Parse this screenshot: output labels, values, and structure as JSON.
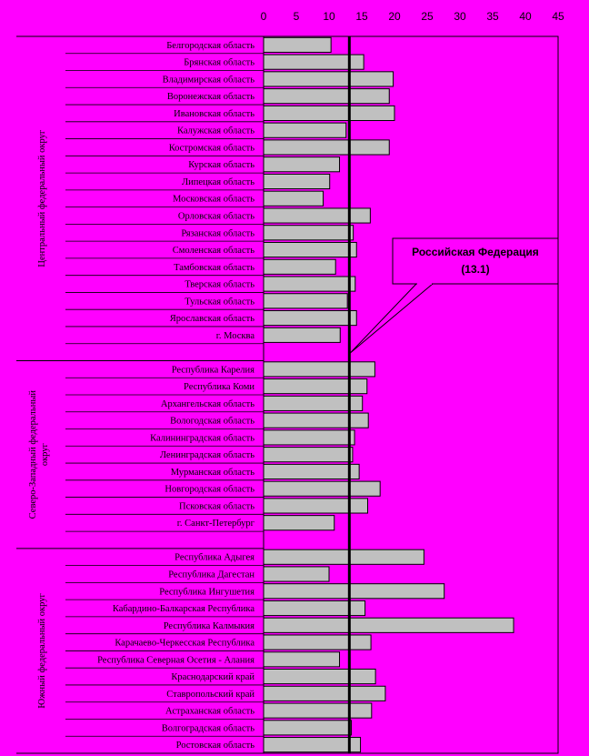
{
  "chart_data": {
    "type": "bar",
    "orientation": "horizontal",
    "xlim": [
      0,
      45
    ],
    "xticks": [
      "0",
      "5",
      "10",
      "15",
      "20",
      "25",
      "30",
      "35",
      "40",
      "45"
    ],
    "grid": false,
    "bar_color": "#c0c0c0",
    "background_color": "#ff00ff",
    "reference_line": {
      "value": 13.1,
      "label_line1": "Российская Федерация",
      "label_line2": "(13.1)"
    },
    "groups": [
      {
        "name": "Центральный федеральный округ",
        "categories": [
          "Белгородская область",
          "Брянская область",
          "Владимирская область",
          "Воронежская область",
          "Ивановская область",
          "Калужская область",
          "Костромская область",
          "Курская область",
          "Липецкая область",
          "Московская область",
          "Орловская область",
          "Рязанская область",
          "Смоленская область",
          "Тамбовская область",
          "Тверская область",
          "Тульская область",
          "Ярославская область",
          "г. Москва",
          ""
        ],
        "values": [
          10.3,
          15.3,
          19.8,
          19.2,
          20.0,
          12.6,
          19.2,
          11.6,
          10.1,
          9.1,
          16.3,
          13.7,
          14.2,
          11.0,
          14.0,
          12.8,
          14.2,
          11.7,
          null
        ]
      },
      {
        "name": "Северо-Западный федеральный округ",
        "categories": [
          "Республика Карелия",
          "Республика Коми",
          "Архангельская область",
          "Вологодская область",
          "Калининградская область",
          "Ленинградская область",
          "Мурманская область",
          "Новгородская область",
          "Псковская область",
          "г. Санкт-Петербург",
          ""
        ],
        "values": [
          17.0,
          15.8,
          15.1,
          16.0,
          13.9,
          13.6,
          14.6,
          17.8,
          15.9,
          10.8,
          null
        ]
      },
      {
        "name": "Южный федеральный округ",
        "categories": [
          "Республика Адыгея",
          "Республика Дагестан",
          "Республика Ингушетия",
          "Кабардино-Балкарская Республика",
          "Республика Калмыкия",
          "Карачаево-Черкесская Республика",
          "Республика Северная Осетия - Алания",
          "Краснодарский край",
          "Ставропольский край",
          "Астраханская область",
          "Волгоградская область",
          "Ростовская область"
        ],
        "values": [
          24.5,
          10.0,
          27.6,
          15.5,
          38.2,
          16.4,
          11.6,
          17.1,
          18.6,
          16.5,
          13.4,
          14.8
        ]
      }
    ]
  }
}
